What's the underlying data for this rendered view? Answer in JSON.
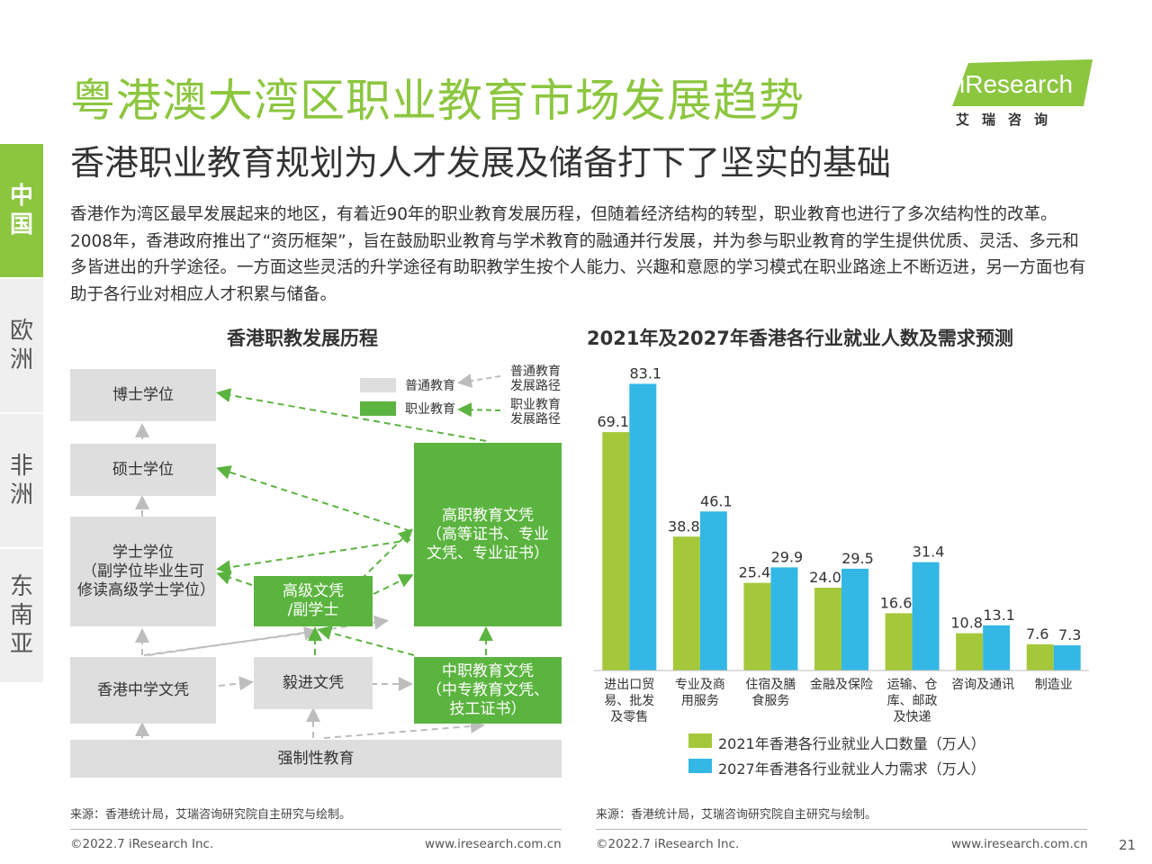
{
  "header": {
    "title": "粤港澳大湾区职业教育市场发展趋势",
    "subtitle": "香港职业教育规划为人才发展及储备打下了坚实的基础",
    "logo_text": "iResearch",
    "logo_sub": "艾瑞咨询"
  },
  "sidebar": {
    "items": [
      {
        "label": "中\n国",
        "active": true
      },
      {
        "label": "欧\n洲",
        "active": false
      },
      {
        "label": "非\n洲",
        "active": false
      },
      {
        "label": "东\n南\n亚",
        "active": false
      }
    ]
  },
  "intro": "香港作为湾区最早发展起来的地区，有着近90年的职业教育发展历程，但随着经济结构的转型，职业教育也进行了多次结构性的改革。2008年，香港政府推出了“资历框架”，旨在鼓励职业教育与学术教育的融通并行发展，并为参与职业教育的学生提供优质、灵活、多元和多皆进出的升学途径。一方面这些灵活的升学途径有助职教学生按个人能力、兴趣和意愿的学习模式在职业路途上不断迈进，另一方面也有助于各行业对相应人才积累与储备。",
  "diagram": {
    "title": "香港职教发展历程",
    "boxes": {
      "phd": "博士学位",
      "master": "硕士学位",
      "bachelor": "学士学位\n（副学位毕业生可修读高级学士学位）",
      "hs": "香港中学文凭",
      "yijin": "毅进文凭",
      "higher_diploma": "高级文凭\n/副学士",
      "voc_higher": "高职教育文凭\n（高等证书、专业文凭、专业证书）",
      "voc_mid": "中职教育文凭\n（中专教育文凭、技工证书）",
      "compulsory": "强制性教育"
    },
    "legend": {
      "general": "普通教育",
      "vocational": "职业教育",
      "general_path": "普通教育\n发展路径",
      "vocational_path": "职业教育\n发展路径"
    },
    "colors": {
      "general": "#dedede",
      "vocational": "#5bb43f",
      "general_arrow": "#bdbdbd",
      "vocational_arrow": "#5bb43f"
    }
  },
  "chart_title": "2021年及2027年香港各行业就业人数及需求预测",
  "chart_data": {
    "type": "bar",
    "title": "2021年及2027年香港各行业就业人数及需求预测",
    "categories": [
      "进出口贸易、批发及零售",
      "专业及商用服务",
      "住宿及膳食服务",
      "金融及保险",
      "运输、仓库、邮政及快递",
      "咨询及通讯",
      "制造业"
    ],
    "category_lines": [
      [
        "进出口贸",
        "易、批发",
        "及零售"
      ],
      [
        "专业及商",
        "用服务"
      ],
      [
        "住宿及膳",
        "食服务"
      ],
      [
        "金融及保险"
      ],
      [
        "运输、仓",
        "库、邮政",
        "及快递"
      ],
      [
        "咨询及通讯"
      ],
      [
        "制造业"
      ]
    ],
    "series": [
      {
        "name": "2021年香港各行业就业人口数量（万人）",
        "values": [
          69.1,
          38.8,
          25.4,
          24.0,
          16.6,
          10.8,
          7.6
        ],
        "labels": [
          "69.1",
          "38.8",
          "25.4",
          "24.0",
          "16.6",
          "10.8",
          "7.6"
        ],
        "color": "#a5c83a"
      },
      {
        "name": "2027年香港各行业就业人力需求（万人）",
        "values": [
          83.1,
          46.1,
          29.9,
          29.5,
          31.4,
          13.1,
          7.3
        ],
        "labels": [
          "83.1",
          "46.1",
          "29.9",
          "29.5",
          "31.4",
          "13.1",
          "7.3"
        ],
        "color": "#33b8e6"
      }
    ],
    "ylim": [
      0,
      90
    ]
  },
  "footer": {
    "source_left": "来源：香港统计局，艾瑞咨询研究院自主研究与绘制。",
    "source_right": "来源：香港统计局，艾瑞咨询研究院自主研究与绘制。",
    "copyright_left": "©2022.7 iResearch Inc.",
    "url_left": "www.iresearch.com.cn",
    "copyright_right": "©2022.7 iResearch Inc.",
    "url_right": "www.iresearch.com.cn",
    "page": "21"
  }
}
